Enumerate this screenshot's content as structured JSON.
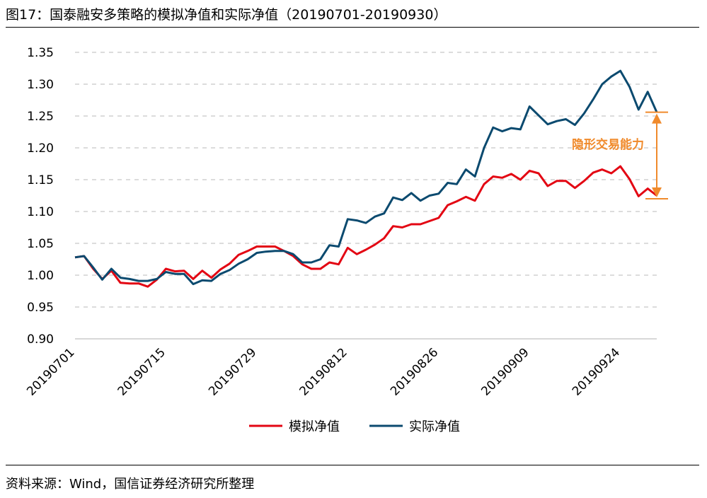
{
  "title": "图17：国泰融安多策略的模拟净值和实际净值（20190701-20190930）",
  "source": "资料来源：Wind，国信证券经济研究所整理",
  "chart_data": {
    "type": "line",
    "ylim": [
      0.9,
      1.35
    ],
    "yticks": [
      "0.90",
      "0.95",
      "1.00",
      "1.05",
      "1.10",
      "1.15",
      "1.20",
      "1.25",
      "1.30",
      "1.35"
    ],
    "x_tick_labels": [
      "20190701",
      "20190715",
      "20190729",
      "20190812",
      "20190826",
      "20190909",
      "20190924"
    ],
    "x_tick_index": [
      0,
      10,
      20,
      30,
      40,
      50,
      60
    ],
    "grid": "horizontal-dashed",
    "legend_position": "bottom",
    "series": [
      {
        "name": "模拟净值",
        "color": "#e30613",
        "values": [
          1.028,
          1.03,
          1.01,
          0.994,
          1.007,
          0.988,
          0.987,
          0.987,
          0.982,
          0.993,
          1.01,
          1.006,
          1.007,
          0.994,
          1.007,
          0.996,
          1.009,
          1.018,
          1.032,
          1.038,
          1.045,
          1.045,
          1.045,
          1.038,
          1.03,
          1.017,
          1.01,
          1.01,
          1.02,
          1.017,
          1.043,
          1.033,
          1.04,
          1.048,
          1.058,
          1.077,
          1.075,
          1.08,
          1.08,
          1.085,
          1.09,
          1.11,
          1.116,
          1.123,
          1.117,
          1.143,
          1.155,
          1.153,
          1.159,
          1.15,
          1.164,
          1.16,
          1.14,
          1.148,
          1.148,
          1.137,
          1.148,
          1.161,
          1.166,
          1.16,
          1.171,
          1.151,
          1.124,
          1.136,
          1.125
        ]
      },
      {
        "name": "实际净值",
        "color": "#0b4a6f",
        "values": [
          1.028,
          1.03,
          1.012,
          0.993,
          1.01,
          0.996,
          0.994,
          0.991,
          0.991,
          0.994,
          1.005,
          1.002,
          1.002,
          0.986,
          0.992,
          0.991,
          1.002,
          1.008,
          1.018,
          1.025,
          1.035,
          1.037,
          1.038,
          1.038,
          1.033,
          1.02,
          1.02,
          1.025,
          1.047,
          1.045,
          1.088,
          1.086,
          1.082,
          1.092,
          1.097,
          1.122,
          1.118,
          1.129,
          1.117,
          1.125,
          1.128,
          1.145,
          1.143,
          1.166,
          1.155,
          1.2,
          1.232,
          1.226,
          1.231,
          1.229,
          1.265,
          1.251,
          1.237,
          1.242,
          1.245,
          1.236,
          1.254,
          1.276,
          1.3,
          1.312,
          1.321,
          1.296,
          1.26,
          1.288,
          1.256
        ]
      }
    ],
    "annotation": {
      "text": "隐形交易能力",
      "color": "#f08a2b",
      "from_value": 1.256,
      "to_value": 1.12
    }
  }
}
